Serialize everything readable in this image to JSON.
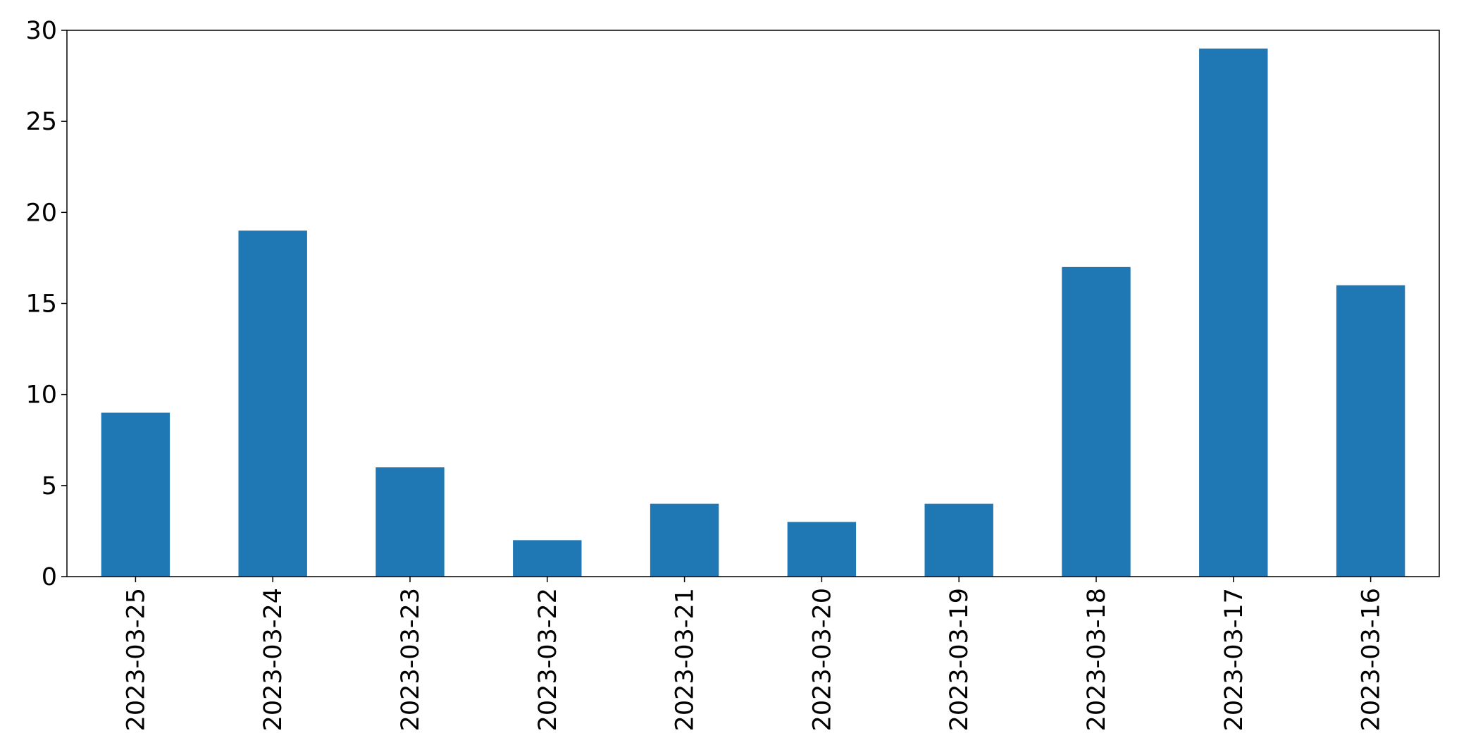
{
  "chart_data": {
    "type": "bar",
    "categories": [
      "2023-03-25",
      "2023-03-24",
      "2023-03-23",
      "2023-03-22",
      "2023-03-21",
      "2023-03-20",
      "2023-03-19",
      "2023-03-18",
      "2023-03-17",
      "2023-03-16"
    ],
    "values": [
      9,
      19,
      6,
      2,
      4,
      3,
      4,
      17,
      29,
      16
    ],
    "title": "",
    "xlabel": "",
    "ylabel": "",
    "ylim": [
      0,
      30
    ],
    "yticks": [
      0,
      5,
      10,
      15,
      20,
      25,
      30
    ],
    "ytick_labels": [
      "0",
      "5",
      "10",
      "15",
      "20",
      "25",
      "30"
    ],
    "grid": false,
    "legend": "none",
    "bar_color": "#1f77b4"
  }
}
